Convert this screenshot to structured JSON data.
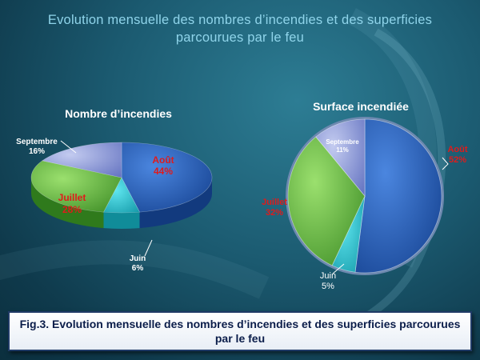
{
  "title": "Evolution mensuelle des nombres d’incendies et des superficies parcourues par le feu",
  "caption": "Fig.3. Evolution mensuelle des nombres d’incendies et des superficies parcourues par le feu",
  "colors": {
    "Août": "#1f5fc1",
    "Juillet": "#5fb93a",
    "Juin": "#1cc6d6",
    "Septembre": "#8191d2",
    "label_red": "#e01b1b"
  },
  "chart_data": [
    {
      "type": "pie",
      "title": "Nombre d’incendies",
      "categories": [
        "Août",
        "Juin",
        "Juillet",
        "Septembre"
      ],
      "values": [
        44,
        6,
        28,
        16
      ],
      "labels": [
        "Août\n44%",
        "Juin\n6%",
        "Juillet\n28%",
        "Septembre\n16%"
      ]
    },
    {
      "type": "pie",
      "title": "Surface incendiée",
      "categories": [
        "Août",
        "Juin",
        "Juillet",
        "Septembre"
      ],
      "values": [
        52,
        5,
        32,
        11
      ],
      "labels": [
        "Août\n52%",
        "Juin\n5%",
        "Juillet\n32%",
        "Septembre\n11%"
      ]
    }
  ]
}
